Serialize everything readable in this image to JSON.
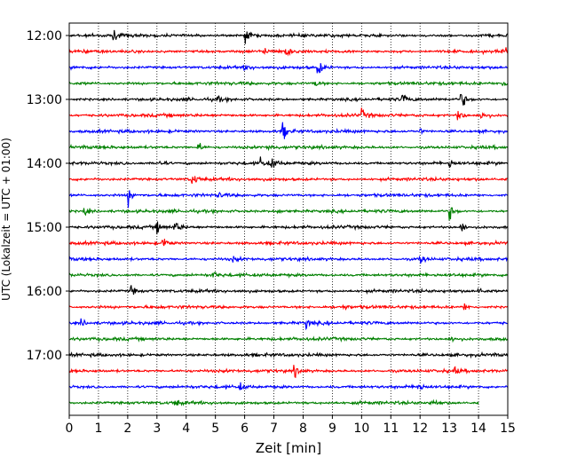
{
  "chart_data": {
    "type": "line",
    "subtype": "helicorder-seismogram",
    "title": "",
    "xlabel": "Zeit  [min]",
    "ylabel": "UTC (Lokalzeit = UTC + 01:00)",
    "xlim": [
      0,
      15
    ],
    "x_ticks": [
      "0",
      "1",
      "2",
      "3",
      "4",
      "5",
      "6",
      "7",
      "8",
      "9",
      "10",
      "11",
      "12",
      "13",
      "14",
      "15"
    ],
    "y_tick_labels": [
      "12:00",
      "13:00",
      "14:00",
      "15:00",
      "16:00",
      "17:00"
    ],
    "rows_per_hour": 4,
    "minutes_per_row": 15,
    "grid": "vertical dotted at each minute",
    "trace_color_cycle": [
      "#000000",
      "#ff0000",
      "#0000ff",
      "#008000"
    ],
    "last_row_end_min": 14.0,
    "events": [
      {
        "row": 0,
        "min": 1.5,
        "amp": 0.6
      },
      {
        "row": 0,
        "min": 6.0,
        "amp": 1.1
      },
      {
        "row": 1,
        "min": 6.6,
        "amp": 0.6
      },
      {
        "row": 1,
        "min": 7.4,
        "amp": 0.8
      },
      {
        "row": 1,
        "min": 14.9,
        "amp": 0.5
      },
      {
        "row": 2,
        "min": 6.0,
        "amp": 0.4
      },
      {
        "row": 2,
        "min": 8.5,
        "amp": 1.0
      },
      {
        "row": 3,
        "min": 8.4,
        "amp": 0.5
      },
      {
        "row": 3,
        "min": 14.8,
        "amp": 0.5
      },
      {
        "row": 4,
        "min": 5.0,
        "amp": 0.5
      },
      {
        "row": 4,
        "min": 11.4,
        "amp": 0.6
      },
      {
        "row": 4,
        "min": 13.4,
        "amp": 1.2
      },
      {
        "row": 5,
        "min": 10.0,
        "amp": 0.6
      },
      {
        "row": 5,
        "min": 13.3,
        "amp": 0.9
      },
      {
        "row": 5,
        "min": 14.1,
        "amp": 0.9
      },
      {
        "row": 6,
        "min": 7.3,
        "amp": 1.2
      },
      {
        "row": 6,
        "min": 12.0,
        "amp": 0.3
      },
      {
        "row": 7,
        "min": 4.4,
        "amp": 0.6
      },
      {
        "row": 7,
        "min": 6.8,
        "amp": 0.4
      },
      {
        "row": 8,
        "min": 3.1,
        "amp": 0.5
      },
      {
        "row": 8,
        "min": 6.5,
        "amp": 0.8
      },
      {
        "row": 8,
        "min": 6.9,
        "amp": 1.0
      },
      {
        "row": 8,
        "min": 13.0,
        "amp": 0.6
      },
      {
        "row": 9,
        "min": 4.2,
        "amp": 0.9
      },
      {
        "row": 10,
        "min": 2.0,
        "amp": 1.2
      },
      {
        "row": 10,
        "min": 5.1,
        "amp": 0.4
      },
      {
        "row": 11,
        "min": 0.5,
        "amp": 0.6
      },
      {
        "row": 11,
        "min": 7.1,
        "amp": 0.4
      },
      {
        "row": 11,
        "min": 13.0,
        "amp": 1.0
      },
      {
        "row": 12,
        "min": 3.0,
        "amp": 0.7
      },
      {
        "row": 12,
        "min": 3.6,
        "amp": 0.9
      },
      {
        "row": 12,
        "min": 13.4,
        "amp": 0.7
      },
      {
        "row": 13,
        "min": 3.2,
        "amp": 0.8
      },
      {
        "row": 14,
        "min": 5.6,
        "amp": 0.3
      },
      {
        "row": 14,
        "min": 12.0,
        "amp": 0.7
      },
      {
        "row": 15,
        "min": 4.9,
        "amp": 0.5
      },
      {
        "row": 16,
        "min": 2.1,
        "amp": 0.7
      },
      {
        "row": 16,
        "min": 14.0,
        "amp": 0.4
      },
      {
        "row": 17,
        "min": 9.3,
        "amp": 0.4
      },
      {
        "row": 17,
        "min": 13.5,
        "amp": 0.5
      },
      {
        "row": 18,
        "min": 0.4,
        "amp": 0.4
      },
      {
        "row": 18,
        "min": 8.1,
        "amp": 0.6
      },
      {
        "row": 19,
        "min": 13.1,
        "amp": 0.4
      },
      {
        "row": 21,
        "min": 7.7,
        "amp": 0.8
      },
      {
        "row": 21,
        "min": 13.2,
        "amp": 0.4
      },
      {
        "row": 22,
        "min": 5.8,
        "amp": 0.5
      },
      {
        "row": 22,
        "min": 11.9,
        "amp": 0.7
      },
      {
        "row": 23,
        "min": 3.6,
        "amp": 0.5
      },
      {
        "row": 23,
        "min": 12.4,
        "amp": 0.6
      }
    ]
  }
}
